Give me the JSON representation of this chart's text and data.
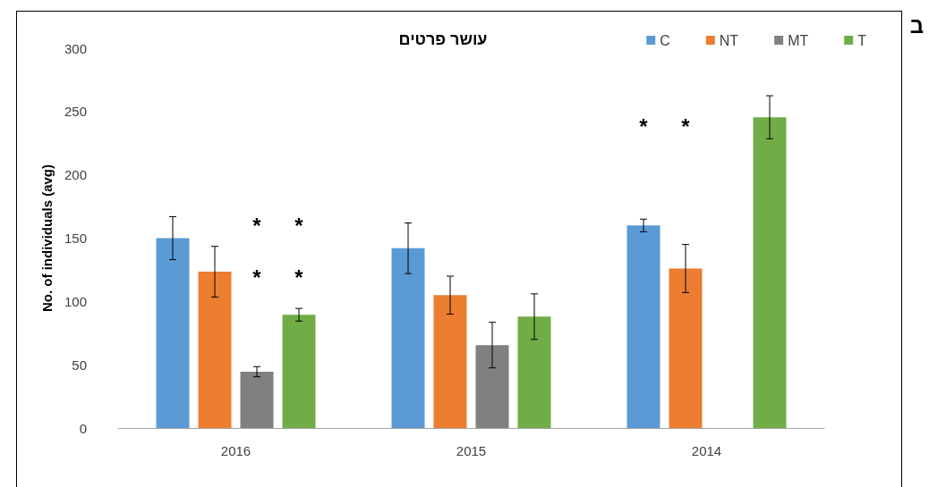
{
  "chart_data": {
    "type": "bar",
    "title": "עושר פרטים",
    "ylabel": "No. of individuals (avg)",
    "categories": [
      "2016",
      "2015",
      "2014"
    ],
    "series": [
      {
        "name": "C",
        "color": "#5b9bd5",
        "values": [
          150,
          142,
          160
        ],
        "errors": [
          17,
          20,
          5
        ]
      },
      {
        "name": "NT",
        "color": "#ed7d31",
        "values": [
          123.5,
          105,
          126
        ],
        "errors": [
          20,
          15,
          19
        ]
      },
      {
        "name": "MT",
        "color": "#808080",
        "values": [
          44.5,
          65.5,
          null
        ],
        "errors": [
          4,
          18,
          null
        ]
      },
      {
        "name": "T",
        "color": "#70ad47",
        "values": [
          89.5,
          88,
          245.5
        ],
        "errors": [
          5,
          18,
          17
        ]
      }
    ],
    "ylim": [
      0,
      300
    ],
    "yticks": [
      0,
      50,
      100,
      150,
      200,
      250,
      300
    ],
    "grid": false,
    "legend": "top right",
    "annotations": [
      "ב",
      "*",
      "*",
      "*",
      "*",
      "*",
      "*"
    ]
  }
}
